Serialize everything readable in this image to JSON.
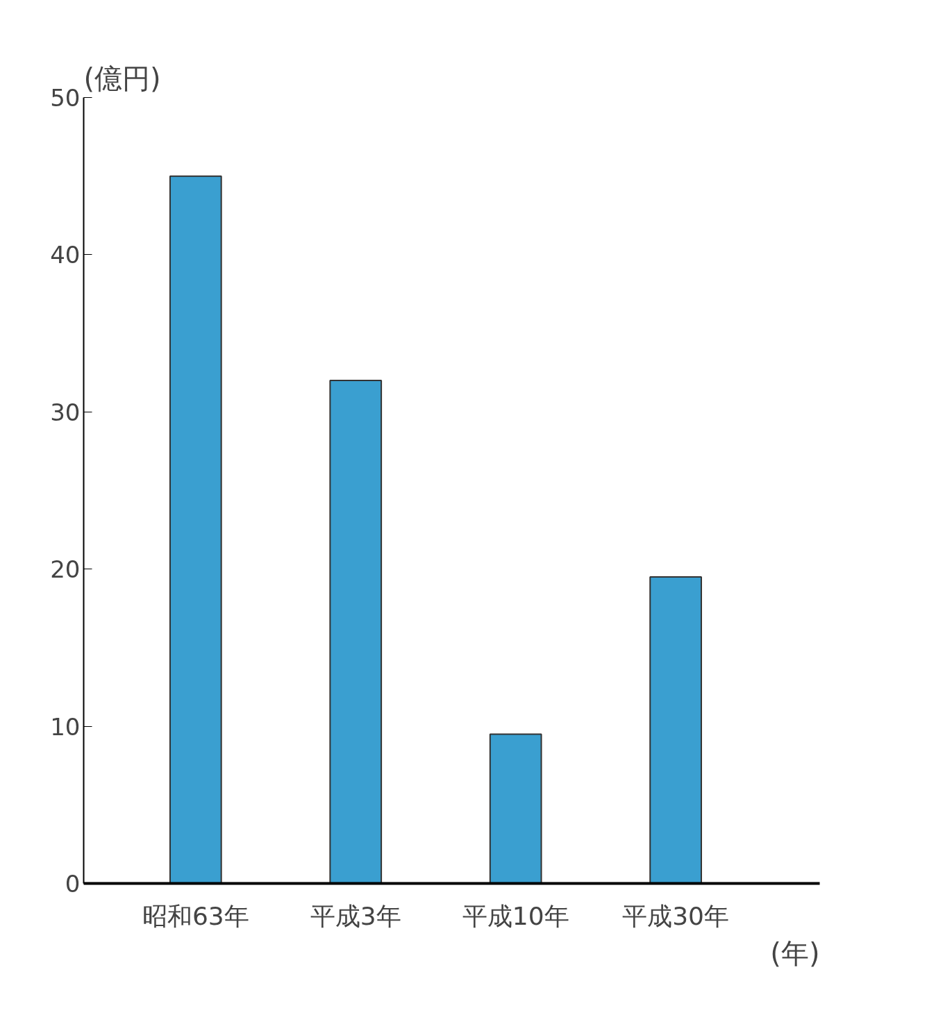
{
  "chart_data": {
    "type": "bar",
    "ylabel": "(億円)",
    "xlabel": "(年)",
    "categories": [
      "昭和63年",
      "平成3年",
      "平成10年",
      "平成30年"
    ],
    "values": [
      45,
      32,
      9.5,
      19.5
    ],
    "color": "#3a9fd0",
    "ylim": [
      0,
      50
    ],
    "yticks": [
      0,
      10,
      20,
      30,
      40,
      50
    ],
    "grid": false
  }
}
